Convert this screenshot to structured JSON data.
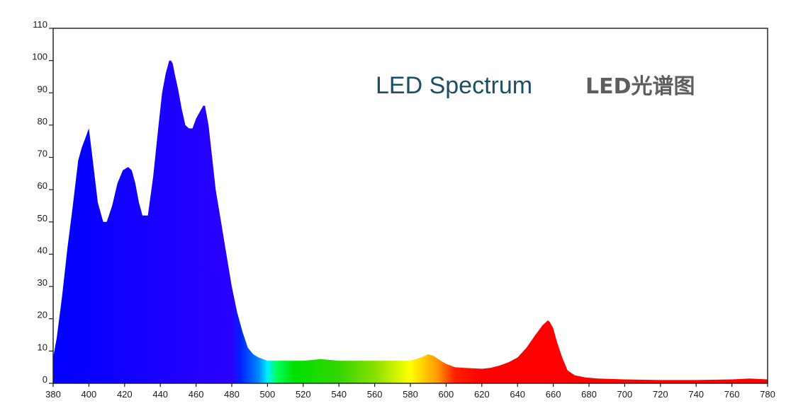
{
  "chart_data": {
    "type": "area",
    "title": "LED Spectrum",
    "title_secondary": "LED光谱图",
    "xlabel": "",
    "ylabel": "",
    "xlim": [
      380,
      780
    ],
    "ylim": [
      0,
      110
    ],
    "grid": false,
    "x_ticks": [
      380,
      400,
      420,
      440,
      460,
      480,
      500,
      520,
      540,
      560,
      580,
      600,
      620,
      640,
      660,
      680,
      700,
      720,
      740,
      760,
      780
    ],
    "y_ticks": [
      0,
      10,
      20,
      30,
      40,
      50,
      60,
      70,
      80,
      90,
      100,
      110
    ],
    "fill": "visible-spectrum gradient by wavelength",
    "series": [
      {
        "x": [
          380,
          382,
          385,
          388,
          391,
          394,
          396,
          398,
          400,
          402,
          405,
          408,
          410,
          413,
          416,
          419,
          422,
          424,
          426,
          428,
          430,
          433,
          436,
          439,
          441,
          443,
          445,
          446,
          447,
          448,
          450,
          452,
          454,
          456,
          458,
          460,
          462,
          464,
          465,
          467,
          469,
          471,
          474,
          477,
          480,
          483,
          486,
          489,
          492,
          495,
          500,
          505,
          510,
          520,
          530,
          540,
          550,
          560,
          570,
          580,
          586,
          590,
          593,
          597,
          600,
          605,
          610,
          620,
          625,
          630,
          635,
          640,
          645,
          650,
          654,
          656,
          657,
          658,
          660,
          662,
          665,
          668,
          672,
          678,
          685,
          700,
          720,
          740,
          760,
          770,
          780
        ],
        "y": [
          8,
          14,
          27,
          42,
          55,
          69,
          73,
          76,
          79,
          70,
          56,
          50,
          50,
          55,
          62,
          66,
          67,
          66,
          62,
          56,
          52,
          52,
          64,
          80,
          90,
          96,
          100,
          100,
          99,
          96,
          91,
          85,
          80,
          79,
          79,
          82,
          84,
          86,
          86,
          80,
          70,
          60,
          50,
          40,
          30,
          22,
          16,
          11,
          9,
          8,
          7,
          7,
          7,
          7,
          7.5,
          7,
          7,
          7,
          7,
          7,
          8,
          9,
          8.5,
          7,
          6,
          5,
          4.8,
          4.5,
          4.8,
          5.5,
          6.5,
          8,
          11,
          15,
          18,
          19,
          19.5,
          19,
          17,
          13,
          8,
          4,
          2.5,
          1.8,
          1.5,
          1.2,
          1,
          1,
          1.2,
          1.5,
          1.2
        ]
      }
    ],
    "colors": {
      "axis": "#1a1a1a",
      "title_en": "#1d4f63",
      "title_cn": "#5e5e5e"
    }
  }
}
